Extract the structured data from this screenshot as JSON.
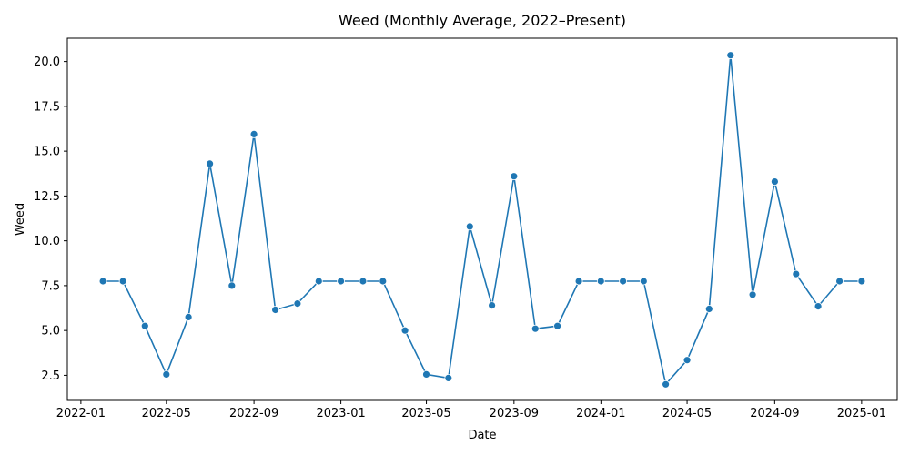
{
  "chart_data": {
    "type": "line",
    "title": "Weed (Monthly Average, 2022–Present)",
    "xlabel": "Date",
    "ylabel": "Weed",
    "x": [
      "2022-02",
      "2022-03",
      "2022-04",
      "2022-05",
      "2022-06",
      "2022-07",
      "2022-08",
      "2022-09",
      "2022-10",
      "2022-11",
      "2022-12",
      "2023-01",
      "2023-02",
      "2023-03",
      "2023-04",
      "2023-05",
      "2023-06",
      "2023-07",
      "2023-08",
      "2023-09",
      "2023-10",
      "2023-11",
      "2023-12",
      "2024-01",
      "2024-02",
      "2024-03",
      "2024-04",
      "2024-05",
      "2024-06",
      "2024-07",
      "2024-08",
      "2024-09",
      "2024-10",
      "2024-11",
      "2024-12",
      "2025-01"
    ],
    "series": [
      {
        "name": "Weed",
        "color": "#1f77b4",
        "values": [
          7.75,
          7.75,
          5.25,
          2.55,
          5.75,
          14.3,
          7.5,
          15.95,
          6.15,
          6.5,
          7.75,
          7.75,
          7.75,
          7.75,
          5.0,
          2.55,
          2.35,
          10.8,
          6.4,
          13.6,
          5.1,
          5.25,
          7.75,
          7.75,
          7.75,
          7.75,
          2.0,
          3.35,
          6.2,
          20.35,
          7.0,
          13.3,
          8.15,
          6.35,
          7.75,
          7.75
        ]
      }
    ],
    "xticks": [
      "2022-01",
      "2022-05",
      "2022-09",
      "2023-01",
      "2023-05",
      "2023-09",
      "2024-01",
      "2024-05",
      "2024-09",
      "2025-01"
    ],
    "yticks": [
      2.5,
      5.0,
      7.5,
      10.0,
      12.5,
      15.0,
      17.5,
      20.0
    ],
    "ylim": [
      1.1,
      21.3
    ],
    "xlim": [
      "2021-12-13",
      "2025-02-20"
    ],
    "grid": false
  }
}
